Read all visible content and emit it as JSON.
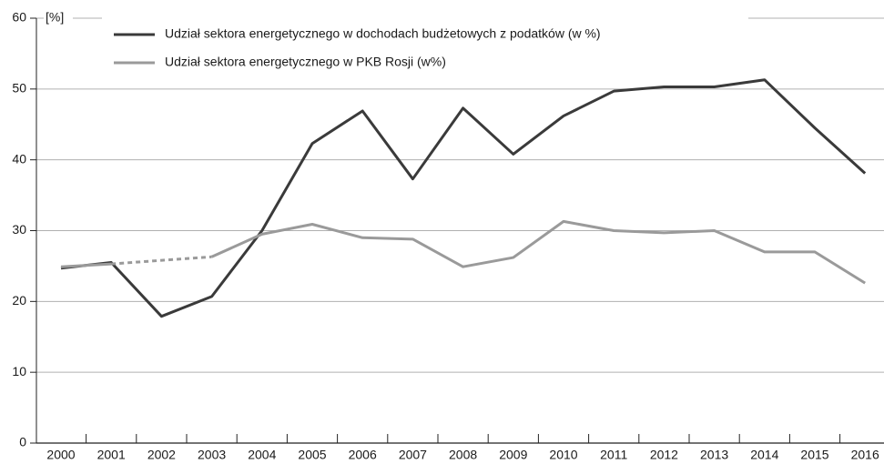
{
  "chart_data": {
    "type": "line",
    "y_label": "[%]",
    "categories": [
      "2000",
      "2001",
      "2002",
      "2003",
      "2004",
      "2005",
      "2006",
      "2007",
      "2008",
      "2009",
      "2010",
      "2011",
      "2012",
      "2013",
      "2014",
      "2015",
      "2016"
    ],
    "series": [
      {
        "name": "Udział sektora energetycznego w dochodach budżetowych z podatków (w %)",
        "color": "#3a3a3a",
        "values": [
          24.7,
          25.5,
          17.9,
          20.7,
          30.0,
          42.3,
          46.9,
          37.3,
          47.3,
          40.8,
          46.2,
          49.7,
          50.3,
          50.3,
          51.3,
          44.5,
          38.1
        ]
      },
      {
        "name": "Udział sektora energetycznego w PKB Rosji (w%)",
        "color": "#9a9a9a",
        "values": [
          24.9,
          25.3,
          null,
          26.3,
          29.5,
          30.9,
          29.0,
          28.8,
          24.9,
          26.2,
          31.3,
          30.0,
          29.7,
          30.0,
          27.0,
          27.0,
          22.6
        ]
      }
    ],
    "ylim": [
      0,
      60
    ],
    "yticks": [
      0,
      10,
      20,
      30,
      40,
      50,
      60
    ],
    "grid": true
  }
}
